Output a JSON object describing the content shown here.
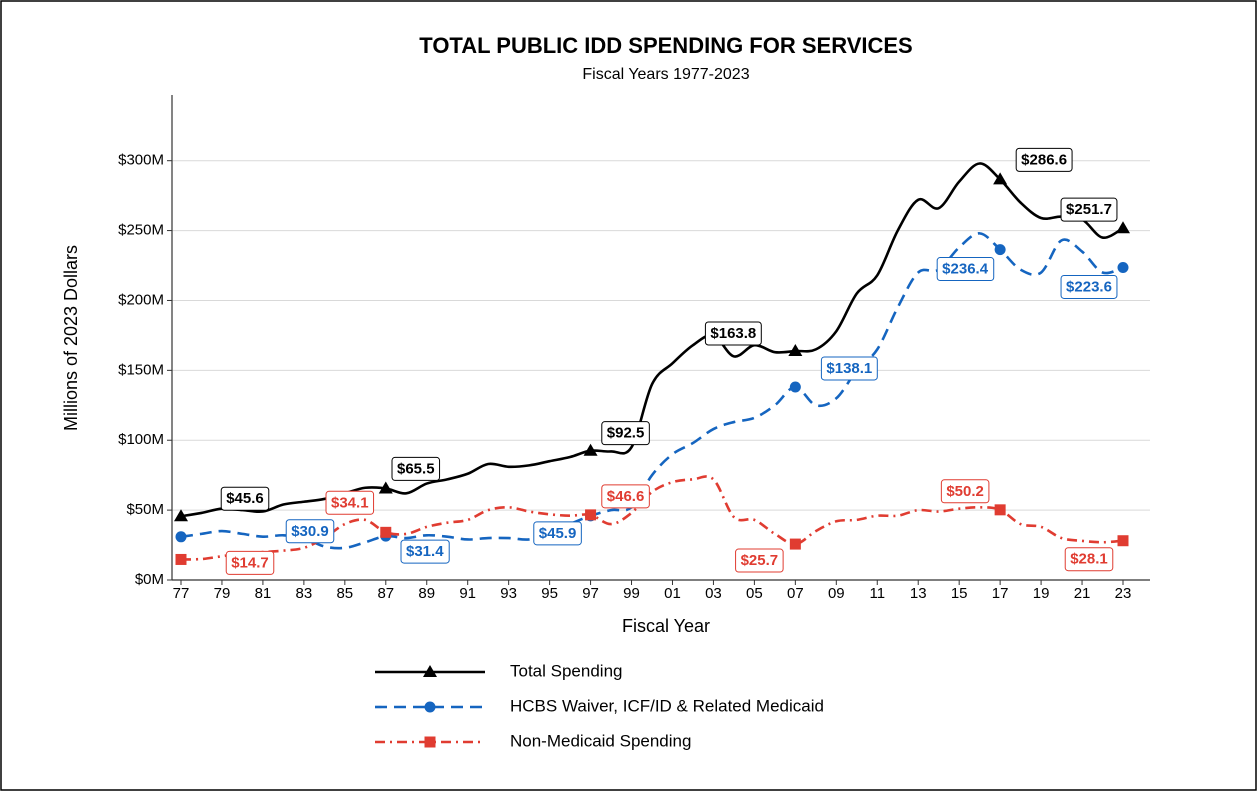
{
  "chart_data": {
    "type": "line",
    "title": "TOTAL PUBLIC IDD SPENDING FOR SERVICES",
    "subtitle": "Fiscal Years 1977-2023",
    "x_label": "Fiscal Year",
    "y_label": "Millions of 2023 Dollars",
    "categories": [
      "77",
      null,
      "79",
      null,
      "81",
      null,
      "83",
      null,
      "85",
      null,
      "87",
      null,
      "89",
      null,
      "91",
      null,
      "93",
      null,
      "95",
      null,
      "97",
      null,
      "99",
      null,
      "01",
      null,
      "03",
      null,
      "05",
      null,
      "07",
      null,
      "09",
      null,
      "11",
      null,
      "13",
      null,
      "15",
      null,
      "17",
      null,
      "19",
      null,
      "21",
      null,
      "23"
    ],
    "ylim": [
      0,
      347
    ],
    "yticks": [
      {
        "value": 0,
        "label": "$0M"
      },
      {
        "value": 50,
        "label": "$50M"
      },
      {
        "value": 100,
        "label": "$100M"
      },
      {
        "value": 150,
        "label": "$150M"
      },
      {
        "value": 200,
        "label": "$200M"
      },
      {
        "value": 250,
        "label": "$250M"
      },
      {
        "value": 300,
        "label": "$300M"
      }
    ],
    "grid": true,
    "legend": "bottom",
    "series": [
      {
        "name": "Total Spending",
        "color": "#000000",
        "dash": "solid",
        "marker": "triangle",
        "values": [
          45.6,
          48,
          51,
          50,
          49,
          54,
          56,
          58,
          62,
          66,
          65.5,
          62,
          69,
          72,
          76,
          83,
          81,
          82,
          85,
          88,
          92.5,
          92,
          95,
          140,
          155,
          168,
          175,
          160,
          168,
          163,
          163.8,
          165,
          178,
          205,
          218,
          250,
          272,
          266,
          285,
          298,
          286.6,
          270,
          259,
          260,
          258,
          245,
          251.7
        ],
        "value_labels": [
          "$45.6",
          null,
          null,
          null,
          null,
          null,
          null,
          null,
          null,
          null,
          "$65.5",
          null,
          null,
          null,
          null,
          null,
          null,
          null,
          null,
          null,
          "$92.5",
          null,
          null,
          null,
          null,
          null,
          null,
          null,
          null,
          null,
          "$163.8",
          null,
          null,
          null,
          null,
          null,
          null,
          null,
          null,
          null,
          "$286.6",
          null,
          null,
          null,
          null,
          null,
          "$251.7"
        ]
      },
      {
        "name": "HCBS Waiver, ICF/ID & Related Medicaid",
        "color": "#1565c0",
        "dash": "dashed",
        "marker": "circle",
        "values": [
          30.9,
          33,
          35,
          33,
          31,
          32,
          30,
          24,
          23,
          27,
          31.4,
          30,
          32,
          31,
          29,
          30,
          30,
          29,
          33,
          40,
          45.9,
          50,
          52,
          75,
          90,
          98,
          108,
          113,
          116,
          125,
          138.1,
          125,
          130,
          150,
          165,
          195,
          220,
          222,
          238,
          248,
          236.4,
          222,
          220,
          243,
          235,
          220,
          223.6
        ],
        "value_labels": [
          "$30.9",
          null,
          null,
          null,
          null,
          null,
          null,
          null,
          null,
          null,
          "$31.4",
          null,
          null,
          null,
          null,
          null,
          null,
          null,
          null,
          null,
          "$45.9",
          null,
          null,
          null,
          null,
          null,
          null,
          null,
          null,
          null,
          "$138.1",
          null,
          null,
          null,
          null,
          null,
          null,
          null,
          null,
          null,
          "$236.4",
          null,
          null,
          null,
          null,
          null,
          "$223.6"
        ]
      },
      {
        "name": "Non-Medicaid Spending",
        "color": "#e03c31",
        "dash": "dashdot",
        "marker": "square",
        "values": [
          14.7,
          15,
          17,
          19,
          20,
          21,
          23,
          30,
          40,
          43,
          34.1,
          33,
          38,
          41,
          43,
          50,
          52,
          49,
          47,
          46,
          46.6,
          40,
          48,
          63,
          70,
          72,
          72,
          45,
          43,
          33,
          25.7,
          35,
          42,
          43,
          46,
          46,
          50,
          49,
          51,
          52,
          50.2,
          40,
          38,
          30,
          28,
          27,
          28.1
        ],
        "value_labels": [
          "$14.7",
          null,
          null,
          null,
          null,
          null,
          null,
          null,
          null,
          null,
          "$34.1",
          null,
          null,
          null,
          null,
          null,
          null,
          null,
          null,
          null,
          "$46.6",
          null,
          null,
          null,
          null,
          null,
          null,
          null,
          null,
          null,
          "$25.7",
          null,
          null,
          null,
          null,
          null,
          null,
          null,
          null,
          null,
          "$50.2",
          null,
          null,
          null,
          null,
          null,
          "$28.1"
        ]
      }
    ]
  }
}
